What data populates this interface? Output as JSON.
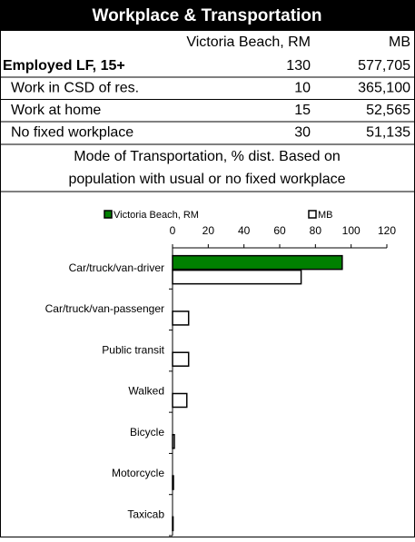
{
  "header": {
    "title": "Workplace & Transportation"
  },
  "table": {
    "columns": [
      "Victoria Beach, RM",
      "MB"
    ],
    "rows": [
      [
        "Employed LF, 15+",
        "130",
        "577,705"
      ],
      [
        "Work in CSD of res.",
        "10",
        "365,100"
      ],
      [
        "Work at home",
        "15",
        "52,565"
      ],
      [
        "No fixed workplace",
        "30",
        "51,135"
      ]
    ]
  },
  "caption": [
    "Mode of Transportation, % dist. Based on",
    "population with usual or no fixed workplace"
  ],
  "chart_data": {
    "type": "bar",
    "orientation": "horizontal",
    "categories": [
      "Car/truck/van-driver",
      "Car/truck/van-passenger",
      "Public transit",
      "Walked",
      "Bicycle",
      "Motorcycle",
      "Taxicab"
    ],
    "series": [
      {
        "name": "Victoria Beach, RM",
        "color": "#008000",
        "values": [
          95,
          0,
          0,
          0,
          0,
          0,
          0
        ]
      },
      {
        "name": "MB",
        "color": "#ffffff",
        "values": [
          72,
          9,
          9,
          8,
          1,
          0.5,
          0.3
        ]
      }
    ],
    "xlim": [
      0,
      120
    ],
    "xticks": [
      0,
      20,
      40,
      60,
      80,
      100,
      120
    ]
  }
}
